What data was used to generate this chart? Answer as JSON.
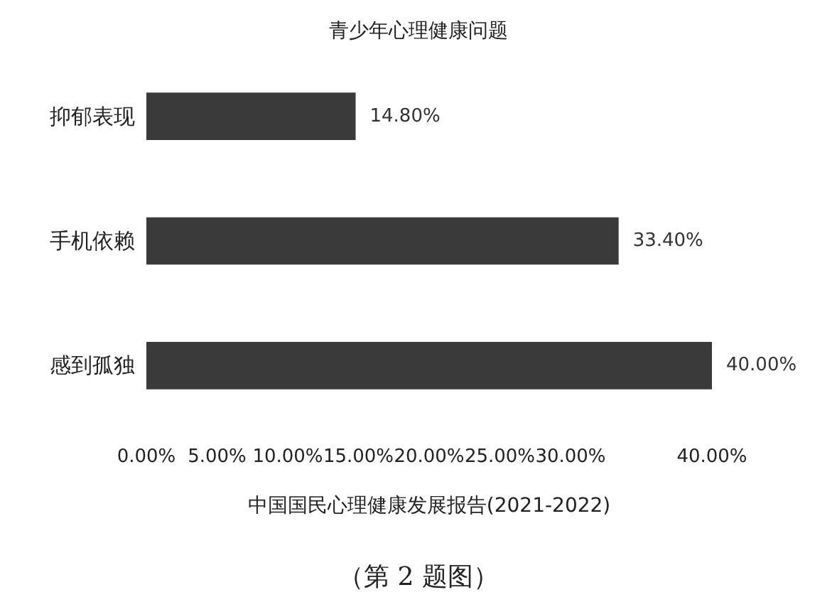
{
  "chart_data": {
    "type": "bar",
    "orientation": "horizontal",
    "title": "青少年心理健康问题",
    "xlabel": "中国国民心理健康发展报告(2021-2022)",
    "annotations": [
      "（第 2 题图）"
    ],
    "categories": [
      "抑郁表现",
      "手机依赖",
      "感到孤独"
    ],
    "values": [
      14.8,
      33.4,
      40
    ],
    "value_labels": [
      "14.80%",
      "33.40%",
      "40.00%"
    ],
    "color": "#3a3a3a",
    "xlim": [
      0,
      40
    ],
    "xticks": [
      {
        "value": 0,
        "label": "0.00%"
      },
      {
        "value": 5,
        "label": "5.00%"
      },
      {
        "value": 10,
        "label": "10.00%"
      },
      {
        "value": 15,
        "label": "15.00%"
      },
      {
        "value": 20,
        "label": "20.00%"
      },
      {
        "value": 25,
        "label": "25.00%"
      },
      {
        "value": 30,
        "label": "30.00%"
      },
      {
        "value": 40,
        "label": "40.00%"
      }
    ],
    "grid": false
  }
}
